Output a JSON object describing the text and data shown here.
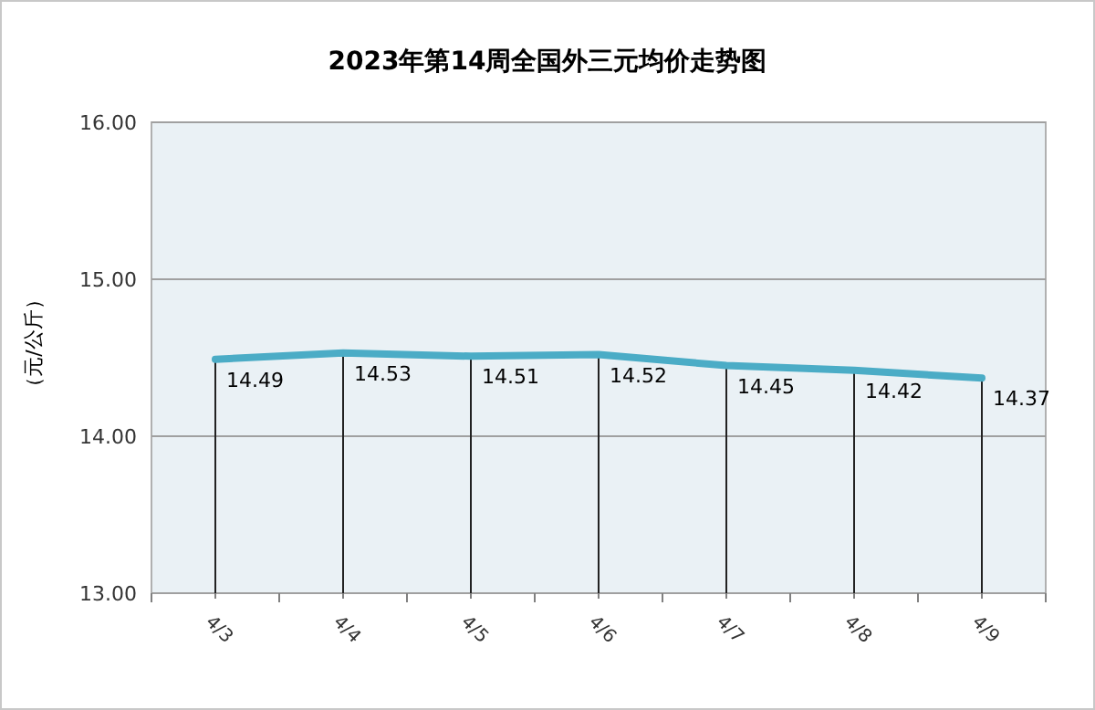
{
  "chart_data": {
    "type": "line",
    "title": "2023年第14周全国外三元均价走势图",
    "ylabel": "（元/公斤）",
    "categories": [
      "4/3",
      "4/4",
      "4/5",
      "4/6",
      "4/7",
      "4/8",
      "4/9"
    ],
    "values": [
      14.49,
      14.53,
      14.51,
      14.52,
      14.45,
      14.42,
      14.37
    ],
    "color": "#4bacc6",
    "ylim": [
      13,
      16
    ],
    "yticks": [
      {
        "value": 13,
        "label": "13.00"
      },
      {
        "value": 14,
        "label": "14.00"
      },
      {
        "value": 15,
        "label": "15.00"
      },
      {
        "value": 16,
        "label": "16.00"
      }
    ],
    "grid": "y",
    "data_labels": true,
    "marker": "none"
  }
}
